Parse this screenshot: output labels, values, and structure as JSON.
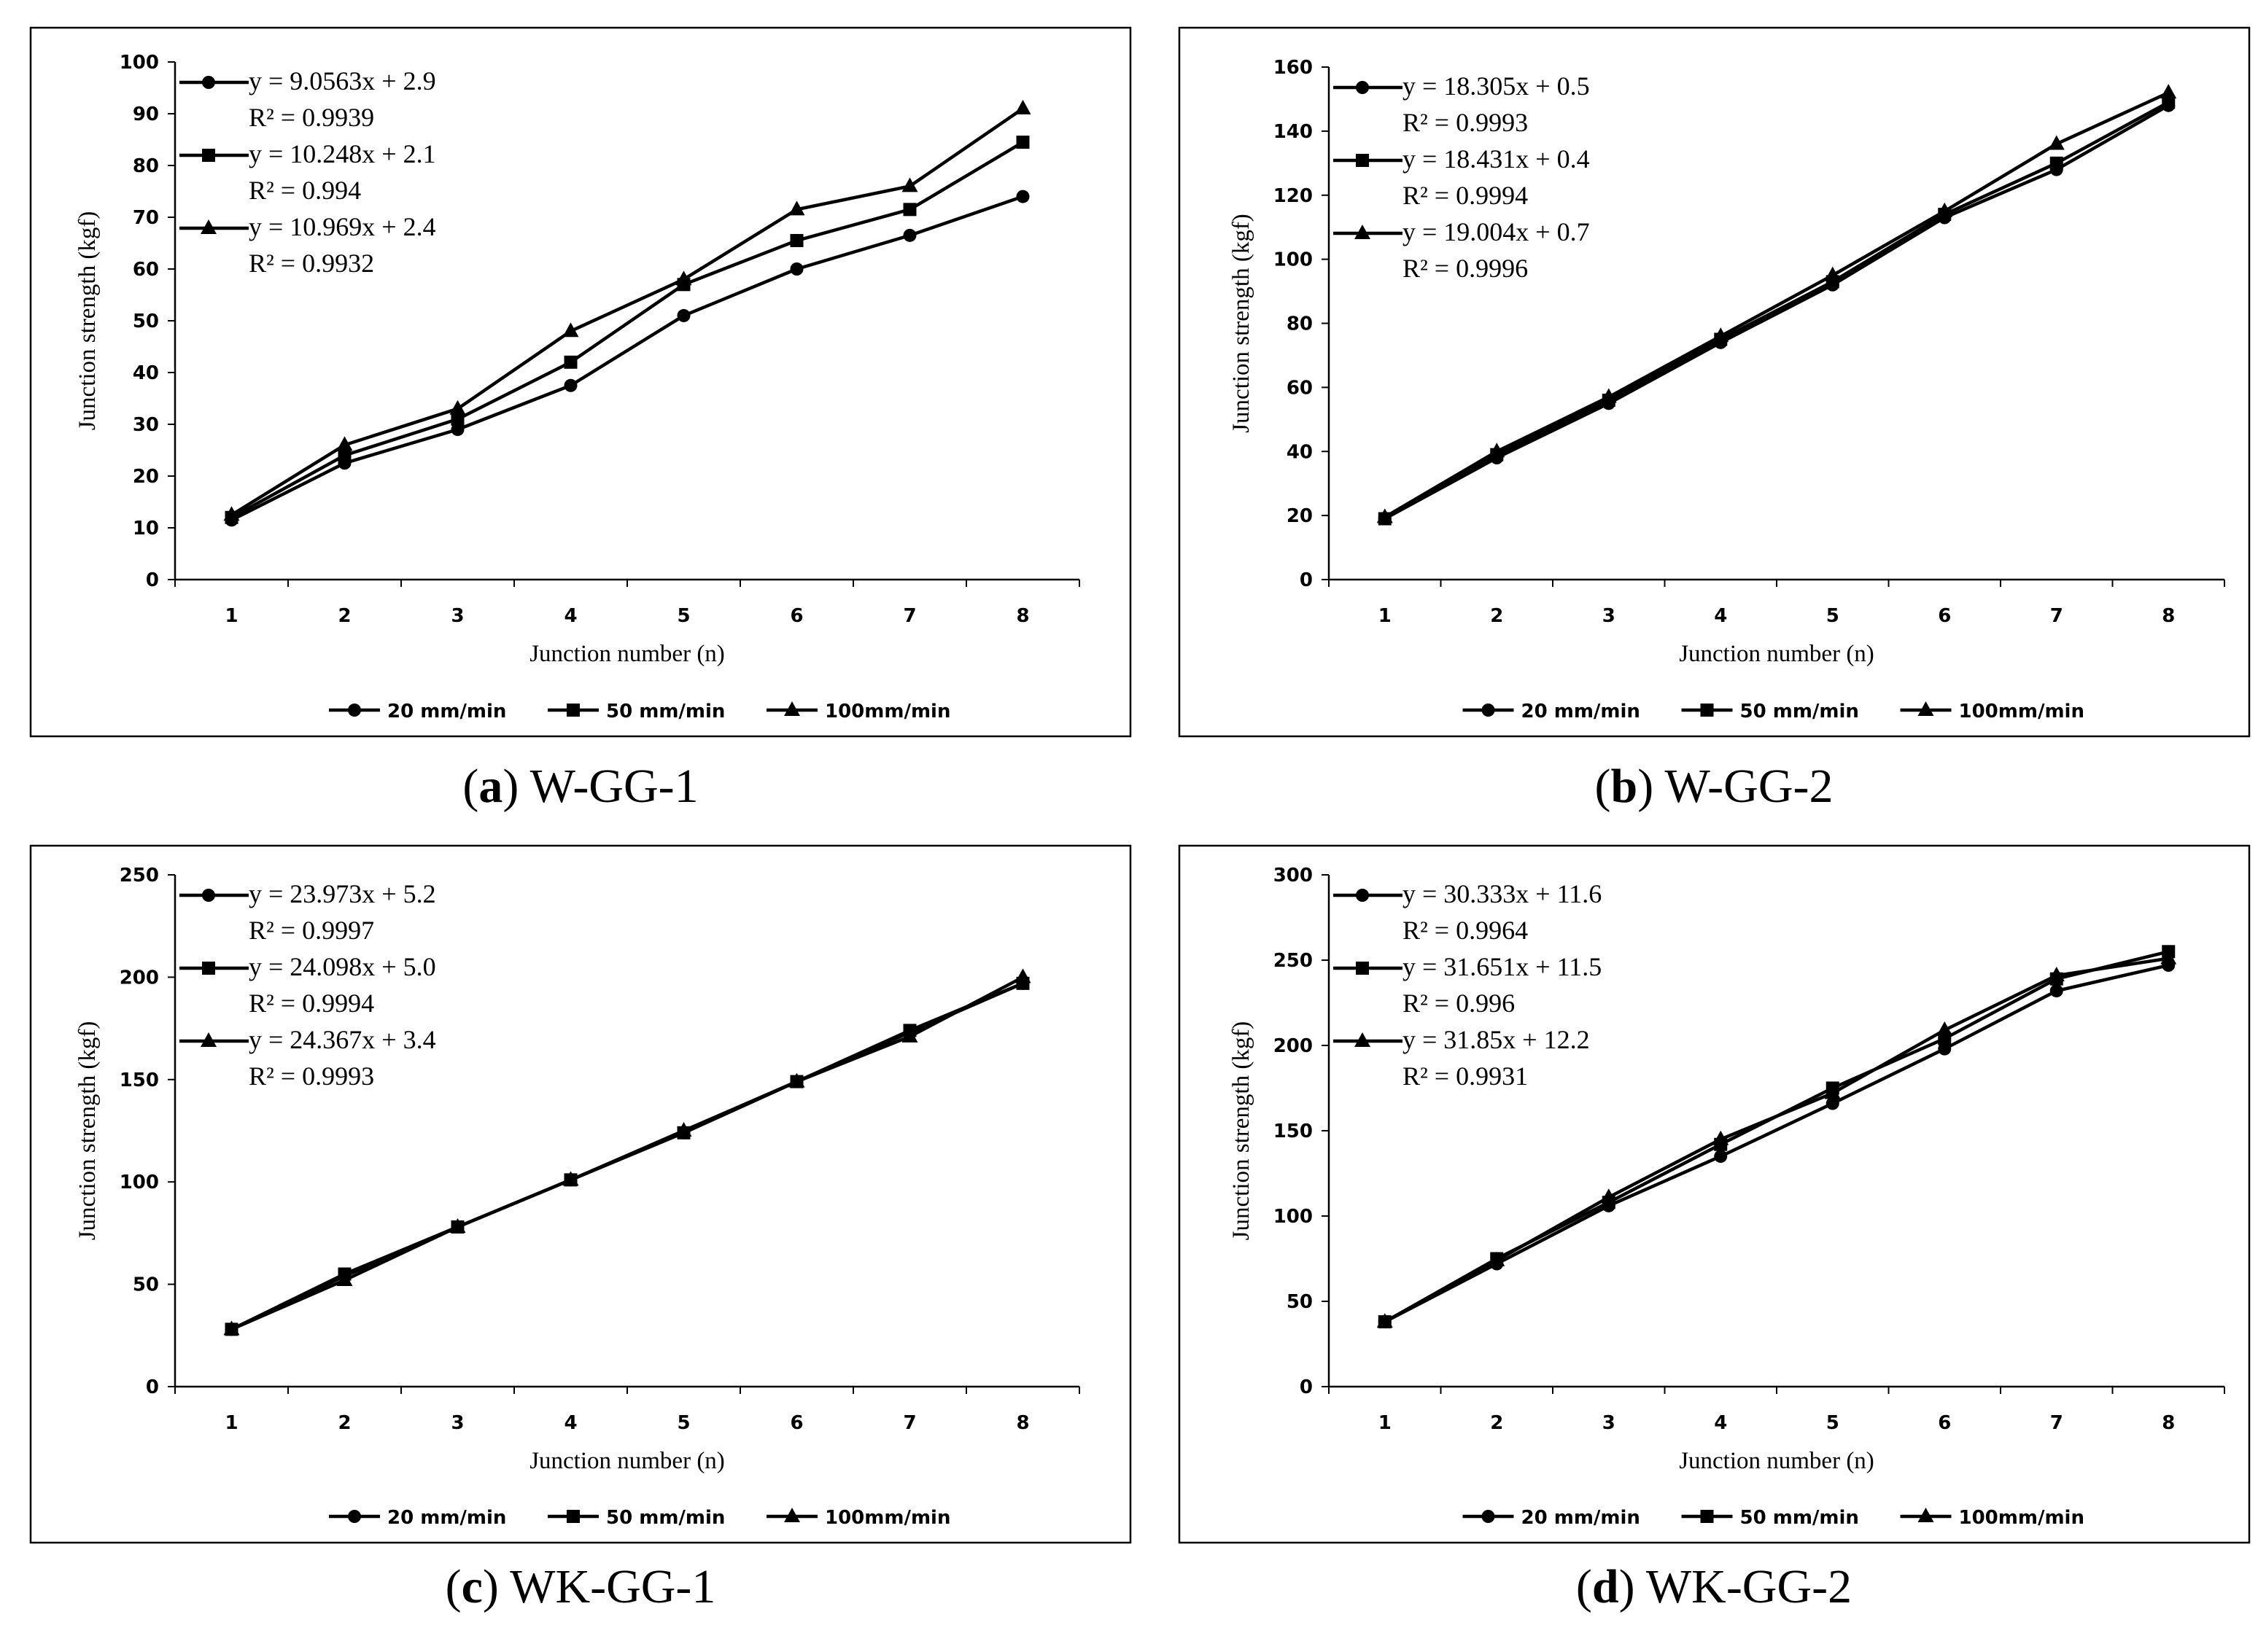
{
  "figure": {
    "series_labels": [
      "20 mm/min",
      "50 mm/min",
      "100mm/min"
    ],
    "marker_names": [
      "circle",
      "square",
      "triangle"
    ]
  },
  "chart_data": [
    {
      "id": "a",
      "type": "line",
      "caption_letter": "a",
      "caption_title": "W-GG-1",
      "xlabel": "Junction number (n)",
      "ylabel": "Junction strength (kgf)",
      "categories": [
        "1",
        "2",
        "3",
        "4",
        "5",
        "6",
        "7",
        "8"
      ],
      "ylim": [
        0,
        100
      ],
      "yticks": [
        0,
        10,
        20,
        30,
        40,
        50,
        60,
        70,
        80,
        90,
        100
      ],
      "series": [
        {
          "name": "20 mm/min",
          "marker": "circle",
          "values": [
            11.5,
            22.5,
            29,
            37.5,
            51,
            60,
            66.5,
            74
          ],
          "equation": "y = 9.0563x + 2.9",
          "r2": "R² = 0.9939"
        },
        {
          "name": "50 mm/min",
          "marker": "square",
          "values": [
            12,
            24,
            31,
            42,
            57,
            65.5,
            71.5,
            84.5
          ],
          "equation": "y = 10.248x + 2.1",
          "r2": "R² = 0.994"
        },
        {
          "name": "100mm/min",
          "marker": "triangle",
          "values": [
            12.5,
            26,
            33,
            48,
            58,
            71.5,
            76,
            91
          ],
          "equation": "y = 10.969x + 2.4",
          "r2": "R² = 0.9932"
        }
      ]
    },
    {
      "id": "b",
      "type": "line",
      "caption_letter": "b",
      "caption_title": "W-GG-2",
      "xlabel": "Junction number (n)",
      "ylabel": "Junction strength (kgf)",
      "categories": [
        "1",
        "2",
        "3",
        "4",
        "5",
        "6",
        "7",
        "8"
      ],
      "ylim": [
        0,
        160
      ],
      "yticks": [
        0,
        20,
        40,
        60,
        80,
        100,
        120,
        140,
        160
      ],
      "series": [
        {
          "name": "20 mm/min",
          "marker": "circle",
          "values": [
            19,
            38,
            55,
            74,
            92,
            113,
            128,
            148
          ],
          "equation": "y = 18.305x + 0.5",
          "r2": "R² = 0.9993"
        },
        {
          "name": "50 mm/min",
          "marker": "square",
          "values": [
            19,
            39,
            56,
            75,
            93,
            114,
            130,
            149
          ],
          "equation": "y = 18.431x + 0.4",
          "r2": "R² = 0.9994"
        },
        {
          "name": "100mm/min",
          "marker": "triangle",
          "values": [
            19.5,
            40,
            57,
            76,
            95,
            115,
            136,
            152
          ],
          "equation": "y = 19.004x + 0.7",
          "r2": "R² = 0.9996"
        }
      ]
    },
    {
      "id": "c",
      "type": "line",
      "caption_letter": "c",
      "caption_title": "WK-GG-1",
      "xlabel": "Junction number (n)",
      "ylabel": "Junction strength (kgf)",
      "categories": [
        "1",
        "2",
        "3",
        "4",
        "5",
        "6",
        "7",
        "8"
      ],
      "ylim": [
        0,
        250
      ],
      "yticks": [
        0,
        50,
        100,
        150,
        200,
        250
      ],
      "series": [
        {
          "name": "20 mm/min",
          "marker": "circle",
          "values": [
            28,
            54,
            78,
            101,
            124,
            149,
            173,
            197
          ],
          "equation": "y = 23.973x + 5.2",
          "r2": "R² = 0.9997"
        },
        {
          "name": "50 mm/min",
          "marker": "square",
          "values": [
            28,
            55,
            78,
            101,
            124,
            149,
            174,
            197
          ],
          "equation": "y = 24.098x + 5.0",
          "r2": "R² = 0.9994"
        },
        {
          "name": "100mm/min",
          "marker": "triangle",
          "values": [
            28,
            52,
            78,
            101,
            125,
            149,
            171,
            200
          ],
          "equation": "y = 24.367x + 3.4",
          "r2": "R² = 0.9993"
        }
      ]
    },
    {
      "id": "d",
      "type": "line",
      "caption_letter": "d",
      "caption_title": "WK-GG-2",
      "xlabel": "Junction number (n)",
      "ylabel": "Junction strength (kgf)",
      "categories": [
        "1",
        "2",
        "3",
        "4",
        "5",
        "6",
        "7",
        "8"
      ],
      "ylim": [
        0,
        300
      ],
      "yticks": [
        0,
        50,
        100,
        150,
        200,
        250,
        300
      ],
      "series": [
        {
          "name": "20 mm/min",
          "marker": "circle",
          "values": [
            38,
            72,
            106,
            135,
            166,
            198,
            232,
            247
          ],
          "equation": "y = 30.333x + 11.6",
          "r2": "R² = 0.9964"
        },
        {
          "name": "50 mm/min",
          "marker": "square",
          "values": [
            38,
            75,
            108,
            142,
            175,
            204,
            239,
            255
          ],
          "equation": "y = 31.651x + 11.5",
          "r2": "R² = 0.996"
        },
        {
          "name": "100mm/min",
          "marker": "triangle",
          "values": [
            38,
            74,
            111,
            145,
            172,
            209,
            241,
            251
          ],
          "equation": "y = 31.85x + 12.2",
          "r2": "R² = 0.9931"
        }
      ]
    }
  ]
}
